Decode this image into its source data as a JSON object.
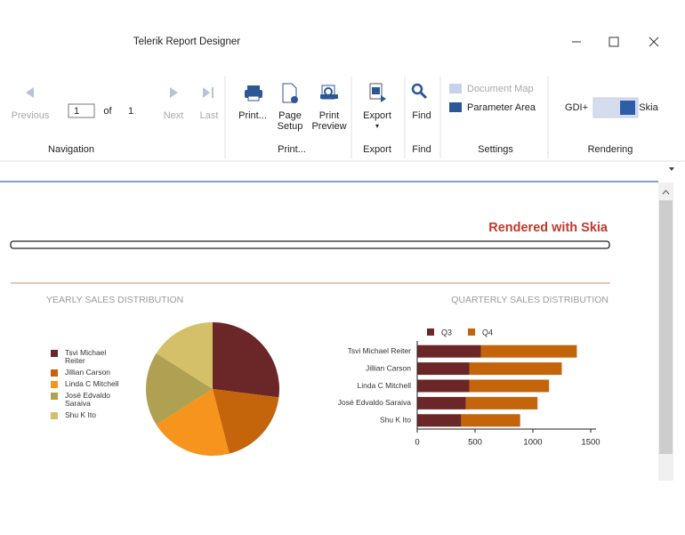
{
  "window": {
    "title": "Telerik Report Designer"
  },
  "toolbar": {
    "navigation": {
      "previous": "Previous",
      "page": 1,
      "of": "of",
      "total": 1,
      "next": "Next",
      "last": "Last",
      "label": "Navigation"
    },
    "print": {
      "print": "Print...",
      "page_setup": "Page Setup",
      "print_preview": "Print Preview",
      "label": "Print..."
    },
    "export": {
      "export": "Export",
      "label": "Export"
    },
    "find": {
      "find": "Find",
      "label": "Find"
    },
    "settings": {
      "document_map": "Document Map",
      "parameter_area": "Parameter Area",
      "label": "Settings"
    },
    "rendering": {
      "gdi": "GDI+",
      "skia": "Skia",
      "label": "Rendering"
    }
  },
  "report": {
    "heading": "Rendered with Skia"
  },
  "chart_data": [
    {
      "type": "pie",
      "title": "YEARLY SALES DISTRIBUTION",
      "categories": [
        "Tsvi Michael Reiter",
        "Jillian Carson",
        "Linda C Mitchell",
        "José Edvaldo Saraiva",
        "Shu K Ito"
      ],
      "values": [
        27,
        19,
        20,
        18,
        16
      ],
      "colors": [
        "#6b2727",
        "#c4650c",
        "#f7941d",
        "#b0a152",
        "#d5c06a"
      ],
      "legend": "left"
    },
    {
      "type": "bar",
      "orientation": "horizontal",
      "stacked": true,
      "title": "QUARTERLY SALES DISTRIBUTION",
      "categories": [
        "Tsvi Michael Reiter",
        "Jillian Carson",
        "Linda C Mitchell",
        "José Edvaldo Saraiva",
        "Shu K Ito"
      ],
      "series": [
        {
          "name": "Q3",
          "color": "#6b2727",
          "values": [
            550,
            450,
            450,
            420,
            380
          ]
        },
        {
          "name": "Q4",
          "color": "#c4650c",
          "values": [
            830,
            800,
            690,
            620,
            510
          ]
        }
      ],
      "xlim": [
        0,
        1500
      ],
      "xticks": [
        0,
        500,
        1000,
        1500
      ],
      "legend": "top"
    }
  ]
}
